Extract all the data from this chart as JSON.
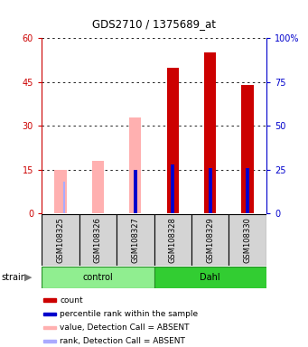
{
  "title": "GDS2710 / 1375689_at",
  "samples": [
    "GSM108325",
    "GSM108326",
    "GSM108327",
    "GSM108328",
    "GSM108329",
    "GSM108330"
  ],
  "ylim_left": [
    0,
    60
  ],
  "ylim_right": [
    0,
    100
  ],
  "yticks_left": [
    0,
    15,
    30,
    45,
    60
  ],
  "ytick_labels_left": [
    "0",
    "15",
    "30",
    "45",
    "60"
  ],
  "yticks_right": [
    0,
    25,
    50,
    75,
    100
  ],
  "ytick_labels_right": [
    "0",
    "25",
    "50",
    "75",
    "100%"
  ],
  "red_bars": [
    null,
    null,
    null,
    50,
    55,
    44
  ],
  "blue_bars": [
    null,
    null,
    25,
    28,
    26,
    26
  ],
  "pink_bars": [
    15,
    18,
    33,
    null,
    null,
    null
  ],
  "lavender_bars": [
    18,
    null,
    null,
    null,
    null,
    null
  ],
  "left_color": "#cc0000",
  "right_color": "#0000cc",
  "pink_color": "#ffb0b0",
  "lavender_color": "#aaaaff",
  "legend_items": [
    {
      "color": "#cc0000",
      "label": "count"
    },
    {
      "color": "#0000cc",
      "label": "percentile rank within the sample"
    },
    {
      "color": "#ffb0b0",
      "label": "value, Detection Call = ABSENT"
    },
    {
      "color": "#aaaaff",
      "label": "rank, Detection Call = ABSENT"
    }
  ]
}
